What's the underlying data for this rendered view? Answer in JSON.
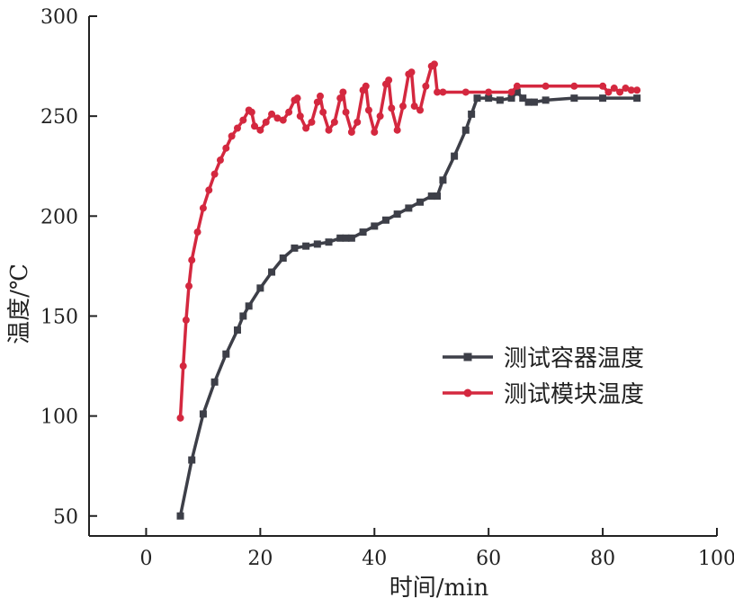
{
  "chart_data": {
    "type": "line",
    "xlabel": "时间/min",
    "ylabel": "温度/℃",
    "xlim": [
      -10,
      100
    ],
    "ylim": [
      40,
      300
    ],
    "xticks": [
      0,
      20,
      40,
      60,
      80,
      100
    ],
    "yticks": [
      50,
      100,
      150,
      200,
      250,
      300
    ],
    "grid": false,
    "legend_position": "center-right",
    "series": [
      {
        "name": "测试容器温度",
        "color": "#3d3f48",
        "marker": "square",
        "x": [
          6,
          8,
          10,
          12,
          14,
          16,
          17,
          18,
          20,
          22,
          24,
          26,
          28,
          30,
          32,
          34,
          35,
          36,
          38,
          40,
          42,
          44,
          46,
          48,
          50,
          51,
          52,
          54,
          56,
          57,
          58,
          60,
          62,
          64,
          65,
          66,
          67,
          68,
          70,
          75,
          80,
          86
        ],
        "y": [
          50,
          78,
          101,
          117,
          131,
          143,
          150,
          155,
          164,
          172,
          179,
          184,
          185,
          186,
          187,
          189,
          189,
          189,
          192,
          195,
          198,
          201,
          204,
          207,
          210,
          210,
          218,
          230,
          243,
          251,
          259,
          259,
          258,
          259,
          262,
          259,
          257,
          257,
          258,
          259,
          259,
          259
        ]
      },
      {
        "name": "测试模块温度",
        "color": "#d4283f",
        "marker": "circle",
        "x": [
          6,
          6.5,
          7,
          7.5,
          8,
          9,
          10,
          11,
          12,
          13,
          14,
          15,
          16,
          17,
          18,
          18.5,
          19,
          20,
          21,
          22,
          23,
          24,
          25,
          26,
          26.5,
          27,
          28,
          29,
          30,
          30.5,
          31,
          32,
          33,
          34,
          34.5,
          35,
          36,
          37,
          38,
          38.5,
          39,
          40,
          41,
          42,
          42.5,
          43,
          44,
          45,
          46,
          46.5,
          47,
          48,
          49,
          50,
          50.5,
          51,
          52,
          56,
          60,
          64,
          65,
          70,
          75,
          80,
          81,
          82,
          83,
          84,
          85,
          86
        ],
        "y": [
          99,
          125,
          148,
          165,
          178,
          192,
          204,
          213,
          221,
          228,
          234,
          240,
          244,
          248,
          253,
          252,
          245,
          243,
          247,
          251,
          249,
          248,
          252,
          258,
          259,
          250,
          244,
          247,
          257,
          260,
          252,
          243,
          247,
          259,
          262,
          252,
          242,
          247,
          263,
          265,
          253,
          242,
          250,
          266,
          268,
          254,
          243,
          255,
          271,
          272,
          255,
          253,
          265,
          275,
          276,
          262,
          262,
          262,
          262,
          262,
          265,
          265,
          265,
          265,
          262,
          264,
          262,
          264,
          263,
          263
        ]
      }
    ]
  }
}
